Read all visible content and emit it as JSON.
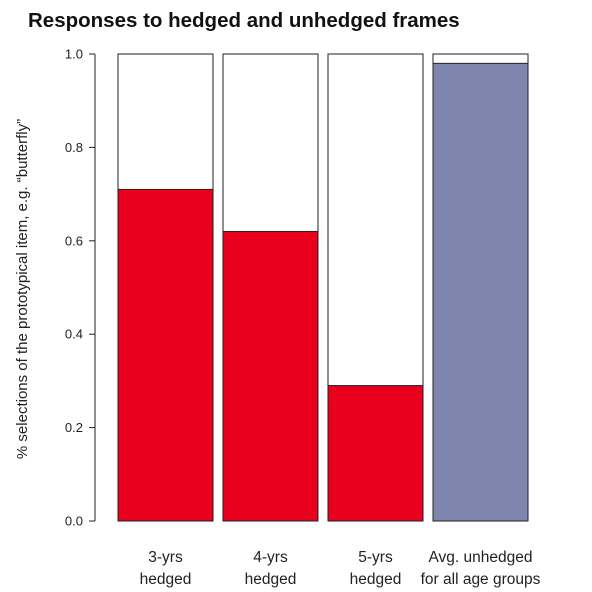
{
  "chart_data": {
    "type": "bar",
    "title": "Responses to hedged and unhedged frames",
    "xlabel": "",
    "ylabel": "% selections of the prototypical item, e.g. “butterfly”",
    "ylim": [
      0,
      1.0
    ],
    "yticks": [
      "0.0",
      "0.2",
      "0.4",
      "0.6",
      "0.8",
      "1.0"
    ],
    "categories": [
      [
        "3-yrs",
        "hedged"
      ],
      [
        "4-yrs",
        "hedged"
      ],
      [
        "5-yrs",
        "hedged"
      ],
      [
        "Avg. unhedged",
        "for all age groups"
      ]
    ],
    "values": [
      0.71,
      0.62,
      0.29,
      0.98
    ],
    "bar_colors": [
      "#e8001c",
      "#e8001c",
      "#e8001c",
      "#7f86ae"
    ],
    "background_fill": "#ffffff",
    "grid": false,
    "legend": "none"
  }
}
